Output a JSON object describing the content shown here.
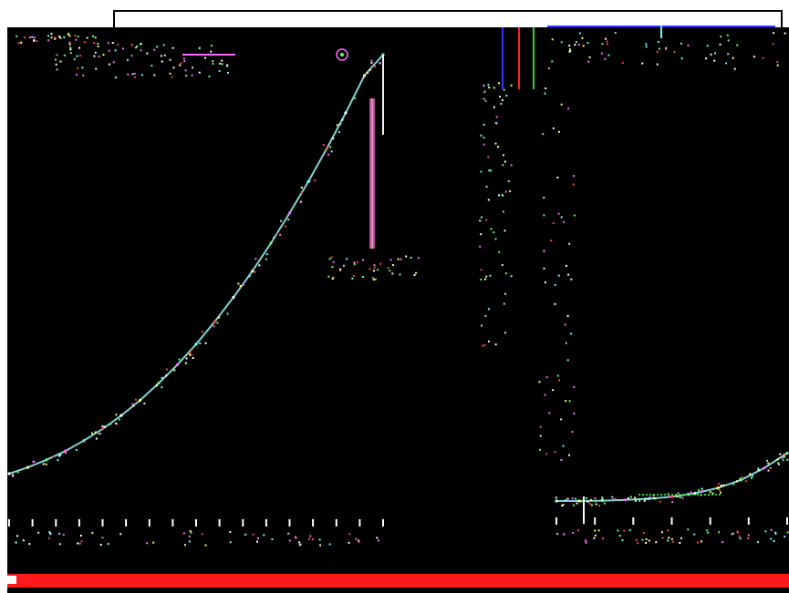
{
  "colors": {
    "background": "#000000",
    "window_frame": "#ffffff",
    "curve": "#7fd6d6",
    "speckle_palette": [
      "#ffffff",
      "#ffff66",
      "#66ff66",
      "#ff66ff",
      "#66ffff",
      "#ff4444"
    ],
    "marker_magenta": "#ff66cc",
    "marker_green": "#33cc33",
    "marker_blue": "#3333ff",
    "marker_red": "#ff2222",
    "status_bar": "#ff1a1a"
  },
  "icons": {
    "handle": "small-target-icon"
  },
  "chart_data": [
    {
      "type": "line",
      "series": [
        {
          "x": [
            0,
            5,
            10,
            15,
            20,
            25,
            30,
            35,
            40,
            45,
            50,
            55,
            60,
            65,
            70,
            75,
            80,
            85,
            90,
            95,
            100
          ],
          "values": [
            0,
            1.5,
            3.3,
            5.4,
            7.9,
            10.7,
            13.9,
            17.5,
            21.6,
            26.0,
            30.9,
            36.3,
            42.1,
            48.3,
            55.0,
            62.2,
            69.7,
            77.7,
            86.1,
            95.0,
            100
          ]
        }
      ],
      "xlim": [
        0,
        100
      ],
      "ylim": [
        0,
        100
      ],
      "grid": false,
      "x_tick_count": 17
    },
    {
      "type": "line",
      "series": [
        {
          "x": [
            0,
            10,
            20,
            30,
            40,
            50,
            60,
            70,
            80,
            90,
            100
          ],
          "values": [
            0,
            0,
            0.1,
            0.3,
            0.6,
            1.1,
            2.0,
            3.4,
            5.5,
            8.6,
            12.5
          ]
        }
      ],
      "xlim": [
        0,
        100
      ],
      "ylim": [
        0,
        100
      ],
      "grid": false,
      "x_tick_count": 7
    }
  ]
}
